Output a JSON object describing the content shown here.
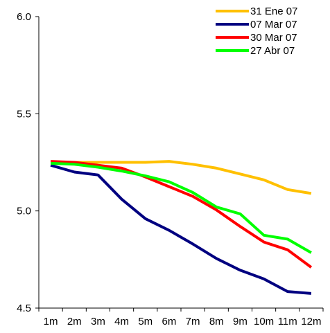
{
  "chart_data": {
    "type": "line",
    "categories": [
      "1m",
      "2m",
      "3m",
      "4m",
      "5m",
      "6m",
      "7m",
      "8m",
      "9m",
      "10m",
      "11m",
      "12m"
    ],
    "ylim": [
      4.5,
      6.0
    ],
    "yticks": [
      "4.5",
      "5.0",
      "5.5",
      "6.0"
    ],
    "grid": false,
    "legend_position": "top-right",
    "series": [
      {
        "name": "31 Ene 07",
        "color": "#FFC000",
        "values": [
          5.25,
          5.25,
          5.25,
          5.25,
          5.25,
          5.255,
          5.24,
          5.22,
          5.19,
          5.16,
          5.11,
          5.09
        ]
      },
      {
        "name": "07 Mar 07",
        "color": "#000080",
        "values": [
          5.235,
          5.2,
          5.185,
          5.06,
          4.96,
          4.9,
          4.83,
          4.755,
          4.695,
          4.65,
          4.585,
          4.575
        ]
      },
      {
        "name": "30 Mar 07",
        "color": "#FF0000",
        "values": [
          5.255,
          5.25,
          5.235,
          5.22,
          5.175,
          5.125,
          5.075,
          5.005,
          4.92,
          4.84,
          4.8,
          4.71
        ]
      },
      {
        "name": "27 Abr 07",
        "color": "#00FF00",
        "values": [
          5.245,
          5.24,
          5.225,
          5.205,
          5.18,
          5.15,
          5.095,
          5.02,
          4.985,
          4.875,
          4.855,
          4.785
        ]
      }
    ]
  }
}
